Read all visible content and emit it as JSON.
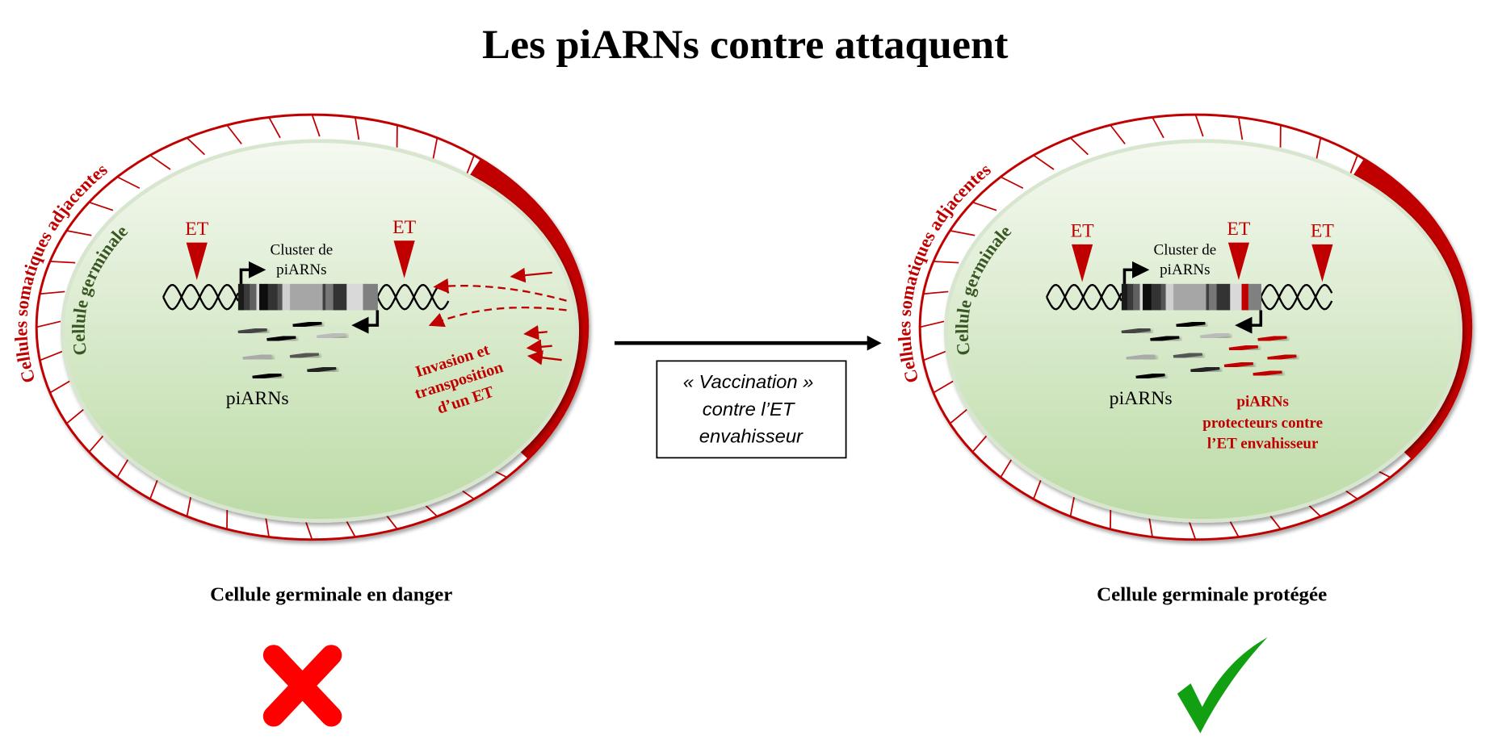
{
  "title": "Les piARNs contre attaquent",
  "colors": {
    "red": "#c00000",
    "green_text": "#385723",
    "cell_fill_top": "#f3f8ee",
    "cell_fill_bottom": "#bcdba6",
    "check": "#12a012",
    "cross": "#ff0000"
  },
  "left_cell": {
    "somatic_label": "Cellules somatiques adjacentes",
    "germinal_label": "Cellule germinale",
    "et_labels": [
      "ET",
      "ET"
    ],
    "cluster_label": [
      "Cluster de",
      "piARNs"
    ],
    "pirna_label": "piARNs",
    "invasion_label": [
      "Invasion et",
      "transposition",
      "d’un ET"
    ],
    "caption": "Cellule germinale en danger",
    "status_icon": "red-x-icon"
  },
  "middle": {
    "box_lines": [
      "« Vaccination »",
      "contre l’ET",
      "envahisseur"
    ],
    "arrow_icon": "right-arrow-icon"
  },
  "right_cell": {
    "somatic_label": "Cellules somatiques adjacentes",
    "germinal_label": "Cellule germinale",
    "et_labels": [
      "ET",
      "ET",
      "ET"
    ],
    "cluster_label": [
      "Cluster de",
      "piARNs"
    ],
    "pirna_label": "piARNs",
    "protective_label": [
      "piARNs",
      "protecteurs contre",
      "l’ET envahisseur"
    ],
    "caption": "Cellule germinale protégée",
    "status_icon": "green-check-icon"
  }
}
